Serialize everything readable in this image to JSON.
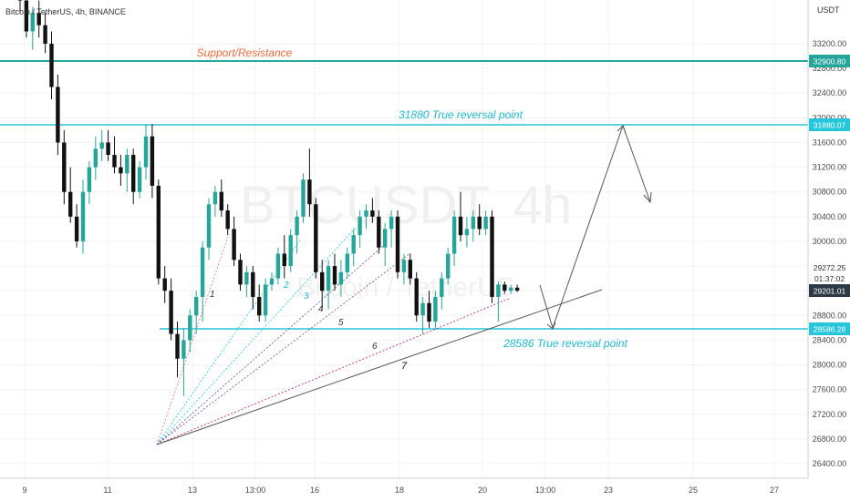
{
  "header": {
    "symbol": "Bitcoin / TetherUS, 4h, BINANCE",
    "currency": "USDT"
  },
  "watermark": {
    "ticker": "BTCUSDT, 4h",
    "name": "Bitcoin / TetherUS"
  },
  "annotations": {
    "support_resistance": "Support/Resistance",
    "upper_reversal": "31880 True reversal point",
    "lower_reversal": "28586 True reversal point",
    "fan_numbers": [
      "1",
      "2",
      "3",
      "4",
      "5",
      "6",
      "7"
    ]
  },
  "colors": {
    "bull": "#26a69a",
    "bear": "#111111",
    "teal_line": "#26a69a",
    "cyan_line": "#26c6da",
    "sr_text": "#f06b3c",
    "reversal_text": "#20b8d0",
    "current_price_badge": "#2d3a46"
  },
  "price_axis": {
    "ticks": [
      "33200.00",
      "32800.00",
      "32400.00",
      "32000.00",
      "31600.00",
      "31200.00",
      "30800.00",
      "30400.00",
      "30000.00",
      "28800.00",
      "28400.00",
      "28000.00",
      "27600.00",
      "27200.00",
      "26800.00",
      "26400.00"
    ],
    "badges": {
      "resistance": "32900.80",
      "upper_reversal": "31880.07",
      "current": "29201.01",
      "lower_reversal": "28586.28"
    },
    "last_price_label": "29272.25",
    "countdown": "01:37:02"
  },
  "time_axis": {
    "ticks": [
      "9",
      "11",
      "13",
      "13:00",
      "16",
      "18",
      "20",
      "13:00",
      "23",
      "25",
      "27"
    ]
  },
  "chart_data": {
    "type": "candlestick",
    "title": "Bitcoin / TetherUS, 4h, BINANCE",
    "ylabel": "USDT",
    "ylim": [
      26200,
      33500
    ],
    "x_labels": [
      "9",
      "11",
      "13",
      "13:00",
      "16",
      "18",
      "20",
      "13:00",
      "23",
      "25",
      "27"
    ],
    "horizontal_levels": [
      {
        "label": "Support/Resistance",
        "value": 32900.8
      },
      {
        "label": "31880 True reversal point",
        "value": 31880.07
      },
      {
        "label": "28586 True reversal point",
        "value": 28586.28
      }
    ],
    "current_price": 29201.01,
    "candles": [
      [
        34200,
        34500,
        33700,
        33900
      ],
      [
        33900,
        34100,
        33300,
        33400
      ],
      [
        33400,
        33800,
        33100,
        33700
      ],
      [
        33700,
        33900,
        33300,
        33500
      ],
      [
        33500,
        33700,
        33050,
        33200
      ],
      [
        33200,
        33400,
        32300,
        32500
      ],
      [
        32500,
        32700,
        31400,
        31600
      ],
      [
        31600,
        31800,
        30600,
        30800
      ],
      [
        30800,
        31200,
        30300,
        30400
      ],
      [
        30400,
        30600,
        29900,
        30000
      ],
      [
        30000,
        31000,
        29800,
        30800
      ],
      [
        30800,
        31300,
        30600,
        31200
      ],
      [
        31200,
        31700,
        31000,
        31500
      ],
      [
        31500,
        31800,
        31300,
        31600
      ],
      [
        31600,
        31800,
        31300,
        31400
      ],
      [
        31400,
        31700,
        31100,
        31200
      ],
      [
        31200,
        31400,
        30900,
        31100
      ],
      [
        31100,
        31500,
        30800,
        31400
      ],
      [
        31400,
        31500,
        30600,
        30800
      ],
      [
        30800,
        31300,
        30700,
        31200
      ],
      [
        31200,
        31900,
        31000,
        31700
      ],
      [
        31700,
        31900,
        30700,
        30900
      ],
      [
        30900,
        31000,
        29300,
        29400
      ],
      [
        29400,
        29600,
        29000,
        29200
      ],
      [
        29200,
        29400,
        28400,
        28500
      ],
      [
        28500,
        28700,
        27800,
        28100
      ],
      [
        28100,
        28600,
        27500,
        28400
      ],
      [
        28400,
        28900,
        28200,
        28800
      ],
      [
        28800,
        29200,
        28500,
        29100
      ],
      [
        29100,
        30000,
        28700,
        29900
      ],
      [
        29900,
        30700,
        29700,
        30600
      ],
      [
        30600,
        30900,
        30400,
        30800
      ],
      [
        30800,
        31000,
        30400,
        30500
      ],
      [
        30500,
        30600,
        30100,
        30200
      ],
      [
        30200,
        30400,
        29600,
        29700
      ],
      [
        29700,
        29800,
        29200,
        29300
      ],
      [
        29300,
        29600,
        29100,
        29500
      ],
      [
        29500,
        29600,
        28900,
        29100
      ],
      [
        29100,
        29300,
        28700,
        28800
      ],
      [
        28800,
        29400,
        28700,
        29300
      ],
      [
        29300,
        29500,
        29200,
        29400
      ],
      [
        29400,
        29900,
        29300,
        29800
      ],
      [
        29800,
        30100,
        29400,
        29600
      ],
      [
        29600,
        30200,
        29500,
        30100
      ],
      [
        30100,
        30500,
        29800,
        30400
      ],
      [
        30400,
        31100,
        30300,
        31000
      ],
      [
        31000,
        31500,
        30400,
        30600
      ],
      [
        30600,
        30700,
        29400,
        29500
      ],
      [
        29500,
        29700,
        28900,
        29200
      ],
      [
        29200,
        29700,
        28900,
        29600
      ],
      [
        29600,
        29800,
        29200,
        29300
      ],
      [
        29300,
        29700,
        29100,
        29500
      ],
      [
        29500,
        29900,
        29400,
        29800
      ],
      [
        29800,
        30200,
        29600,
        30100
      ],
      [
        30100,
        30500,
        29900,
        30400
      ],
      [
        30400,
        30600,
        30200,
        30500
      ],
      [
        30500,
        30700,
        30300,
        30400
      ],
      [
        30400,
        30500,
        29800,
        29900
      ],
      [
        29900,
        30300,
        29600,
        30200
      ],
      [
        30200,
        30500,
        29900,
        30400
      ],
      [
        30400,
        30500,
        29400,
        29500
      ],
      [
        29500,
        29800,
        29300,
        29700
      ],
      [
        29700,
        29800,
        29300,
        29400
      ],
      [
        29400,
        29500,
        28700,
        28800
      ],
      [
        28800,
        29100,
        28500,
        29000
      ],
      [
        29000,
        29200,
        28600,
        28700
      ],
      [
        28700,
        29200,
        28600,
        29100
      ],
      [
        29100,
        29500,
        28900,
        29400
      ],
      [
        29400,
        29900,
        29300,
        29800
      ],
      [
        29800,
        30500,
        29600,
        30400
      ],
      [
        30400,
        30800,
        30000,
        30100
      ],
      [
        30100,
        30400,
        29900,
        30200
      ],
      [
        30200,
        30500,
        30000,
        30400
      ],
      [
        30400,
        30600,
        30100,
        30200
      ],
      [
        30200,
        30500,
        30100,
        30400
      ],
      [
        30400,
        30500,
        29000,
        29100
      ],
      [
        29100,
        29350,
        28700,
        29300
      ],
      [
        29300,
        29350,
        29150,
        29200
      ],
      [
        29200,
        29300,
        29150,
        29250
      ],
      [
        29250,
        29300,
        29180,
        29201
      ]
    ]
  }
}
